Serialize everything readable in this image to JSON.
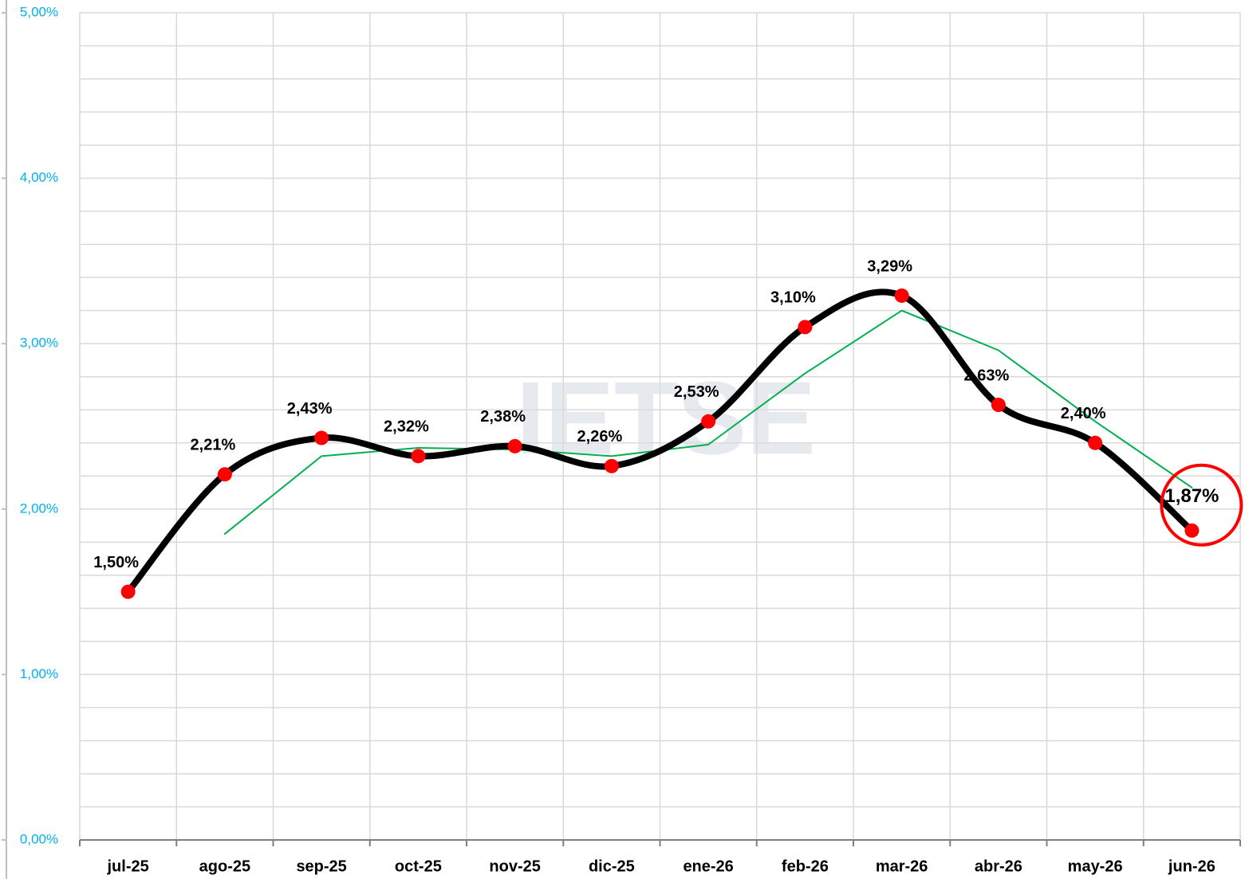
{
  "chart_data": {
    "type": "line",
    "watermark": "IETSE",
    "categories": [
      "jul-25",
      "ago-25",
      "sep-25",
      "oct-25",
      "nov-25",
      "dic-25",
      "ene-26",
      "feb-26",
      "mar-26",
      "abr-26",
      "may-26",
      "jun-26"
    ],
    "series": [
      {
        "color": "#000000",
        "marker_color": "#ff0000",
        "smooth": true,
        "values": [
          1.5,
          2.21,
          2.43,
          2.32,
          2.38,
          2.26,
          2.53,
          3.1,
          3.29,
          2.63,
          2.4,
          1.87
        ],
        "value_labels": [
          "1,50%",
          "2,21%",
          "2,43%",
          "2,32%",
          "2,38%",
          "2,26%",
          "2,53%",
          "3,10%",
          "3,29%",
          "2,63%",
          "2,40%",
          "1,87%"
        ]
      },
      {
        "color": "#00b050",
        "smooth": false,
        "values": [
          null,
          1.85,
          2.32,
          2.37,
          2.36,
          2.32,
          2.39,
          2.82,
          3.2,
          2.96,
          2.53,
          2.13
        ]
      }
    ],
    "ylim": [
      0,
      5
    ],
    "yticks": [
      {
        "value": 0,
        "label": "0,00%"
      },
      {
        "value": 1,
        "label": "1,00%"
      },
      {
        "value": 2,
        "label": "2,00%"
      },
      {
        "value": 3,
        "label": "3,00%"
      },
      {
        "value": 4,
        "label": "4,00%"
      },
      {
        "value": 5,
        "label": "5,00%"
      }
    ],
    "minor_yticks": [
      0.2,
      0.4,
      0.6,
      0.8,
      1.2,
      1.4,
      1.6,
      1.8,
      2.2,
      2.4,
      2.6,
      2.8,
      3.2,
      3.4,
      3.6,
      3.8,
      4.2,
      4.4,
      4.6,
      4.8
    ],
    "grid": true,
    "highlight_index": 11
  }
}
